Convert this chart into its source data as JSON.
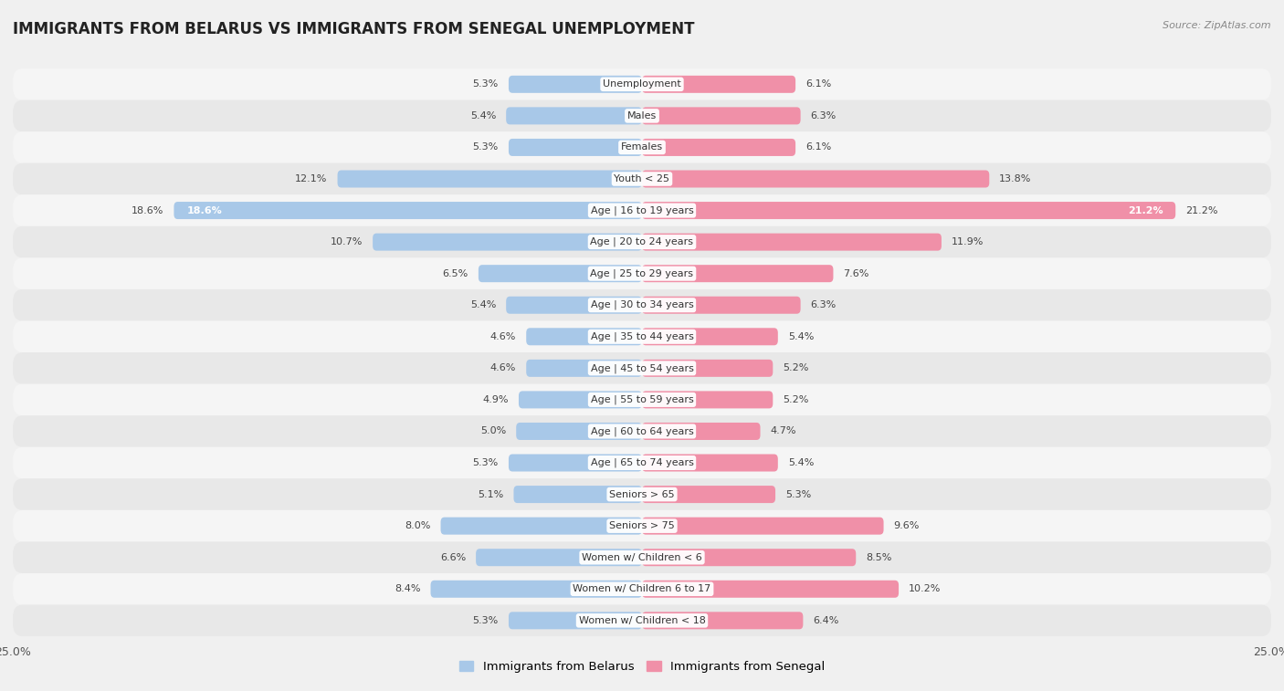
{
  "title": "IMMIGRANTS FROM BELARUS VS IMMIGRANTS FROM SENEGAL UNEMPLOYMENT",
  "source": "Source: ZipAtlas.com",
  "categories": [
    "Unemployment",
    "Males",
    "Females",
    "Youth < 25",
    "Age | 16 to 19 years",
    "Age | 20 to 24 years",
    "Age | 25 to 29 years",
    "Age | 30 to 34 years",
    "Age | 35 to 44 years",
    "Age | 45 to 54 years",
    "Age | 55 to 59 years",
    "Age | 60 to 64 years",
    "Age | 65 to 74 years",
    "Seniors > 65",
    "Seniors > 75",
    "Women w/ Children < 6",
    "Women w/ Children 6 to 17",
    "Women w/ Children < 18"
  ],
  "belarus_values": [
    5.3,
    5.4,
    5.3,
    12.1,
    18.6,
    10.7,
    6.5,
    5.4,
    4.6,
    4.6,
    4.9,
    5.0,
    5.3,
    5.1,
    8.0,
    6.6,
    8.4,
    5.3
  ],
  "senegal_values": [
    6.1,
    6.3,
    6.1,
    13.8,
    21.2,
    11.9,
    7.6,
    6.3,
    5.4,
    5.2,
    5.2,
    4.7,
    5.4,
    5.3,
    9.6,
    8.5,
    10.2,
    6.4
  ],
  "belarus_color": "#a8c8e8",
  "senegal_color": "#f090a8",
  "row_colors": [
    "#f5f5f5",
    "#e8e8e8"
  ],
  "background_color": "#f0f0f0",
  "axis_limit": 25.0,
  "bar_height": 0.55,
  "label_fontsize": 8.0,
  "value_fontsize": 8.0,
  "title_fontsize": 12,
  "legend_labels": [
    "Immigrants from Belarus",
    "Immigrants from Senegal"
  ]
}
